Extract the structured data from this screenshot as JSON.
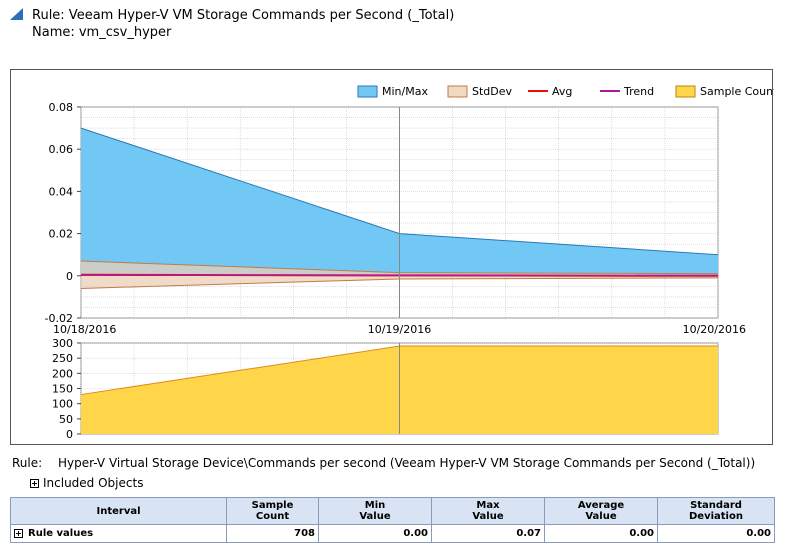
{
  "header": {
    "title": "Rule: Veeam Hyper-V VM Storage Commands per Second (_Total)",
    "name": "Name: vm_csv_hyper"
  },
  "legend": {
    "items": [
      {
        "label": "Min/Max",
        "type": "box",
        "color": "#71c8f5",
        "border": "#2a78b8"
      },
      {
        "label": "StdDev",
        "type": "box",
        "color": "#f2d9c2",
        "border": "#c07b4a"
      },
      {
        "label": "Avg",
        "type": "line",
        "color": "#e3120b"
      },
      {
        "label": "Trend",
        "type": "line",
        "color": "#b0189c"
      },
      {
        "label": "Sample Count",
        "type": "box",
        "color": "#ffd54a",
        "border": "#b8860b"
      }
    ]
  },
  "chart_data": [
    {
      "type": "area",
      "x": [
        "10/18/2016",
        "10/19/2016",
        "10/20/2016"
      ],
      "ylim": [
        -0.02,
        0.08
      ],
      "yticks": [
        "0.08",
        "0.06",
        "0.04",
        "0.02",
        "0",
        "-0.02"
      ],
      "series": [
        {
          "name": "Min/Max",
          "min": [
            0,
            0,
            0
          ],
          "max": [
            0.07,
            0.02,
            0.01
          ]
        },
        {
          "name": "StdDev",
          "low": [
            -0.006,
            -0.0015,
            -0.001
          ],
          "high": [
            0.007,
            0.0015,
            0.001
          ]
        },
        {
          "name": "Avg",
          "values": [
            0.0005,
            0.0002,
            0
          ]
        },
        {
          "name": "Trend",
          "values": [
            0.0003,
            0.0002,
            0.0001
          ]
        }
      ],
      "grid": true
    },
    {
      "type": "area",
      "x": [
        "10/18/2016",
        "10/19/2016",
        "10/20/2016"
      ],
      "ylim": [
        0,
        300
      ],
      "yticks": [
        "300",
        "250",
        "200",
        "150",
        "100",
        "50",
        "0"
      ],
      "series": [
        {
          "name": "Sample Count",
          "values": [
            130,
            290,
            290
          ]
        }
      ],
      "grid": true
    }
  ],
  "rule": {
    "label": "Rule:",
    "value": "Hyper-V Virtual Storage Device\\Commands per second (Veeam Hyper-V VM Storage Commands per Second (_Total))"
  },
  "included": {
    "label": "Included Objects"
  },
  "table": {
    "headers": [
      "Interval",
      "Sample\nCount",
      "Min\nValue",
      "Max\nValue",
      "Average\nValue",
      "Standard\nDeviation"
    ],
    "row": [
      "Rule values",
      "708",
      "0.00",
      "0.07",
      "0.00",
      "0.00"
    ]
  },
  "colors": {
    "minmax_fill": "#71c8f5",
    "minmax_line": "#2a78b8",
    "stddev_fill": "#e9cfb5",
    "stddev_line": "#c07b4a",
    "avg": "#e3120b",
    "trend": "#b0189c",
    "sample_fill": "#ffd54a",
    "sample_line": "#e08a1a",
    "header_bg": "#d8e3f4"
  }
}
